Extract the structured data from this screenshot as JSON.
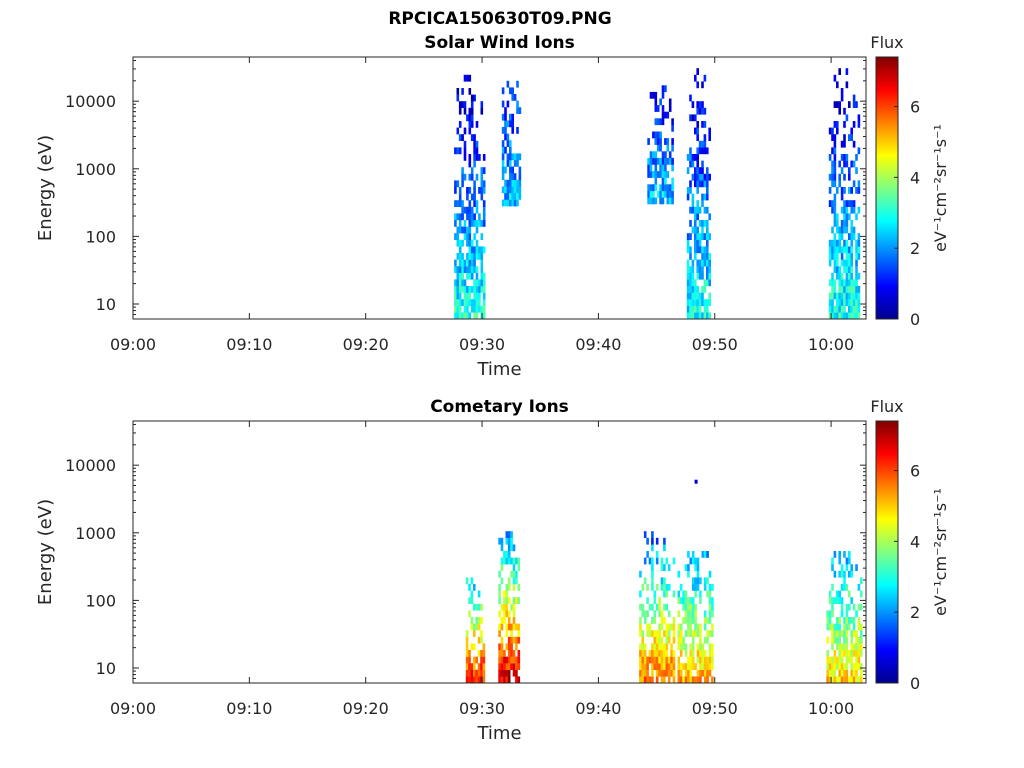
{
  "figure": {
    "title": "RPCICA150630T09.PNG"
  },
  "colormap": {
    "name": "jet",
    "stops": [
      "#00008f",
      "#0000ff",
      "#0080ff",
      "#00ffff",
      "#80ff80",
      "#ffff00",
      "#ff8000",
      "#ff0000",
      "#800000"
    ]
  },
  "chart_data": [
    {
      "type": "heatmap",
      "title": "Solar Wind Ions",
      "xlabel": "Time",
      "ylabel": "Energy (eV)",
      "x_scale": "time",
      "xlim": [
        "09:00",
        "10:03"
      ],
      "xticks": [
        "09:00",
        "09:10",
        "09:20",
        "09:30",
        "09:40",
        "09:50",
        "10:00"
      ],
      "y_scale": "log",
      "ylim": [
        6,
        45000
      ],
      "yticks": [
        10,
        100,
        1000,
        10000
      ],
      "ytick_labels": [
        "10",
        "100",
        "1000",
        "10000"
      ],
      "colorbar": {
        "title": "Flux",
        "label": "eV⁻¹cm⁻²sr⁻¹s⁻¹",
        "range": [
          0,
          7.4
        ],
        "ticks": [
          0,
          2,
          4,
          6
        ],
        "tick_labels": [
          "0",
          "2",
          "4",
          "6"
        ]
      },
      "grid": false,
      "bursts": [
        {
          "t_start": "09:27.6",
          "t_end": "09:30.2",
          "e_min": 6,
          "e_max": 22000,
          "flux_low_energy": 3.0,
          "flux_high_energy": 0.4
        },
        {
          "t_start": "09:31.7",
          "t_end": "09:33.3",
          "e_min": 280,
          "e_max": 20000,
          "flux_low_energy": 2.3,
          "flux_high_energy": 1.2
        },
        {
          "t_start": "09:44.2",
          "t_end": "09:46.4",
          "e_min": 300,
          "e_max": 17000,
          "flux_low_energy": 2.4,
          "flux_high_energy": 0.8
        },
        {
          "t_start": "09:47.6",
          "t_end": "09:49.6",
          "e_min": 6,
          "e_max": 33000,
          "flux_low_energy": 2.9,
          "flux_high_energy": 0.5
        },
        {
          "t_start": "09:59.8",
          "t_end": "10:02.4",
          "e_min": 6,
          "e_max": 30000,
          "flux_low_energy": 3.0,
          "flux_high_energy": 0.4
        }
      ]
    },
    {
      "type": "heatmap",
      "title": "Cometary Ions",
      "xlabel": "Time",
      "ylabel": "Energy (eV)",
      "x_scale": "time",
      "xlim": [
        "09:00",
        "10:03"
      ],
      "xticks": [
        "09:00",
        "09:10",
        "09:20",
        "09:30",
        "09:40",
        "09:50",
        "10:00"
      ],
      "y_scale": "log",
      "ylim": [
        6,
        45000
      ],
      "yticks": [
        10,
        100,
        1000,
        10000
      ],
      "ytick_labels": [
        "10",
        "100",
        "1000",
        "10000"
      ],
      "colorbar": {
        "title": "Flux",
        "label": "eV⁻¹cm⁻²sr⁻¹s⁻¹",
        "range": [
          0,
          7.4
        ],
        "ticks": [
          0,
          2,
          4,
          6
        ],
        "tick_labels": [
          "0",
          "2",
          "4",
          "6"
        ]
      },
      "grid": false,
      "bursts": [
        {
          "t_start": "09:28.6",
          "t_end": "09:30.2",
          "e_min": 6,
          "e_max": 400,
          "flux_low_energy": 6.4,
          "flux_high_energy": 1.6
        },
        {
          "t_start": "09:31.4",
          "t_end": "09:33.2",
          "e_min": 6,
          "e_max": 1200,
          "flux_low_energy": 6.9,
          "flux_high_energy": 1.6
        },
        {
          "t_start": "09:43.5",
          "t_end": "09:46.6",
          "e_min": 6,
          "e_max": 1100,
          "flux_low_energy": 5.8,
          "flux_high_energy": 1.5
        },
        {
          "t_start": "09:46.8",
          "t_end": "09:49.8",
          "e_min": 6,
          "e_max": 600,
          "flux_low_energy": 5.3,
          "flux_high_energy": 2.0
        },
        {
          "t_start": "09:59.6",
          "t_end": "10:02.6",
          "e_min": 6,
          "e_max": 500,
          "flux_low_energy": 5.0,
          "flux_high_energy": 2.0
        }
      ],
      "isolated_points": [
        {
          "t": "09:48.4",
          "e": 5700,
          "flux": 0.5
        }
      ]
    }
  ]
}
